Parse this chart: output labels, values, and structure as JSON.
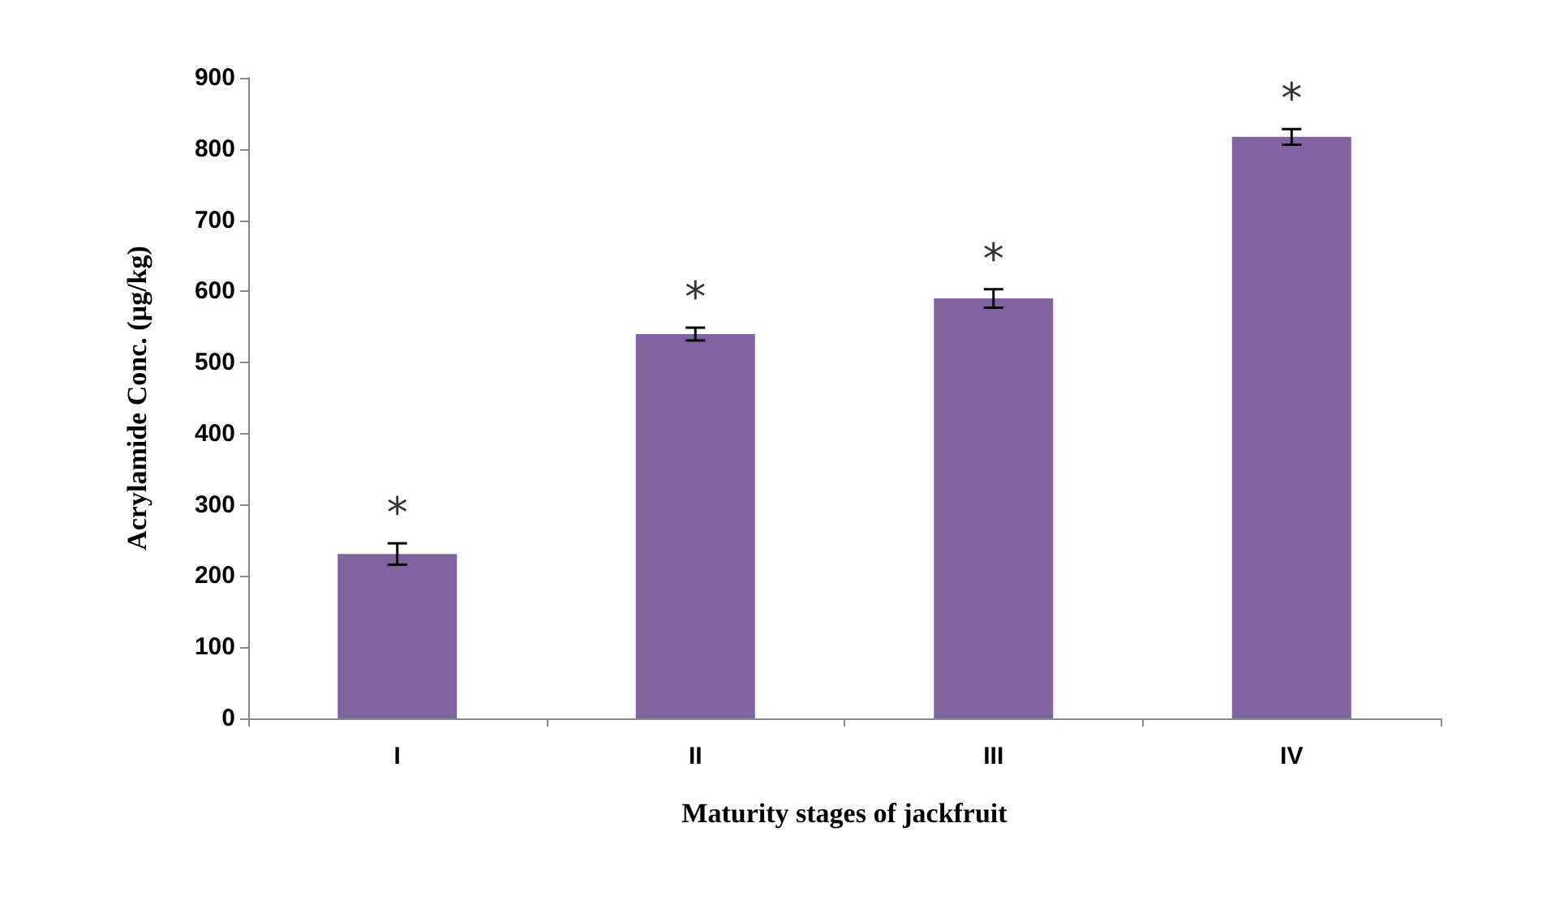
{
  "chart_data": {
    "type": "bar",
    "xlabel": "Maturity stages of jackfruit",
    "ylabel": "Acrylamide Conc. (µg/kg)",
    "categories": [
      "I",
      "II",
      "III",
      "IV"
    ],
    "values": [
      231,
      540,
      590,
      817
    ],
    "errors": [
      15,
      9,
      13,
      11
    ],
    "color": "#8064a2",
    "ylim": [
      0,
      900
    ],
    "yticks": [
      0,
      100,
      200,
      300,
      400,
      500,
      600,
      700,
      800,
      900
    ],
    "grid": false,
    "annotations": [
      {
        "text": "*",
        "x": "I",
        "y": 246
      },
      {
        "text": "*",
        "x": "II",
        "y": 549
      },
      {
        "text": "*",
        "x": "III",
        "y": 603
      },
      {
        "text": "*",
        "x": "IV",
        "y": 828
      }
    ]
  }
}
